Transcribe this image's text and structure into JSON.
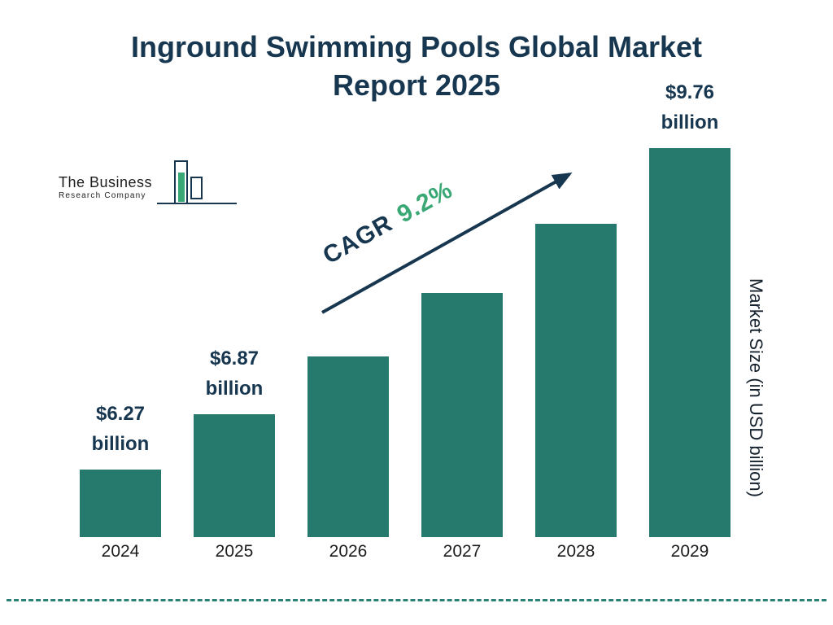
{
  "title": "Inground Swimming Pools Global Market Report 2025",
  "logo": {
    "name_line1": "The Business",
    "name_line2": "Research Company"
  },
  "cagr": {
    "label": "CAGR",
    "value": "9.2%"
  },
  "chart_data": {
    "type": "bar",
    "title": "Inground Swimming Pools Global Market Report 2025",
    "categories": [
      "2024",
      "2025",
      "2026",
      "2027",
      "2028",
      "2029"
    ],
    "values": [
      6.27,
      6.87,
      7.5,
      8.19,
      8.94,
      9.76
    ],
    "unit": "USD billion",
    "xlabel": "",
    "ylabel": "Market Size (in USD billion)",
    "bar_labels": [
      {
        "amount": "$6.27",
        "unit": "billion"
      },
      {
        "amount": "$6.87",
        "unit": "billion"
      },
      null,
      null,
      null,
      {
        "amount": "$9.76",
        "unit": "billion"
      }
    ],
    "cagr": "9.2%",
    "legend": false,
    "grid": false,
    "colors": {
      "bar": "#26796d",
      "title": "#17364f",
      "value_label": "#17364f",
      "cagr_value": "#3aa874",
      "arrow": "#17364f",
      "dashed_line": "#2a8173",
      "logo_green": "#3aa874"
    }
  }
}
